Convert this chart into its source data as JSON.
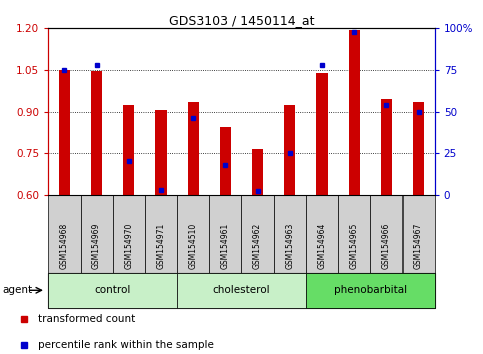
{
  "title": "GDS3103 / 1450114_at",
  "samples": [
    "GSM154968",
    "GSM154969",
    "GSM154970",
    "GSM154971",
    "GSM154510",
    "GSM154961",
    "GSM154962",
    "GSM154963",
    "GSM154964",
    "GSM154965",
    "GSM154966",
    "GSM154967"
  ],
  "transformed_count": [
    1.05,
    1.047,
    0.925,
    0.905,
    0.935,
    0.845,
    0.765,
    0.925,
    1.04,
    1.195,
    0.945,
    0.935
  ],
  "percentile_rank": [
    75,
    78,
    20,
    3,
    46,
    18,
    2,
    25,
    78,
    98,
    54,
    50
  ],
  "ylim_left": [
    0.6,
    1.2
  ],
  "ylim_right": [
    0,
    100
  ],
  "yticks_left": [
    0.6,
    0.75,
    0.9,
    1.05,
    1.2
  ],
  "yticks_right": [
    0,
    25,
    50,
    75,
    100
  ],
  "ytick_labels_right": [
    "0",
    "25",
    "50",
    "75",
    "100%"
  ],
  "groups": [
    {
      "label": "control",
      "indices": [
        0,
        1,
        2,
        3
      ],
      "color": "#c8f0c8"
    },
    {
      "label": "cholesterol",
      "indices": [
        4,
        5,
        6,
        7
      ],
      "color": "#c8f0c8"
    },
    {
      "label": "phenobarbital",
      "indices": [
        8,
        9,
        10,
        11
      ],
      "color": "#66dd66"
    }
  ],
  "bar_color": "#cc0000",
  "dot_color": "#0000cc",
  "baseline": 0.6,
  "bar_width": 0.35,
  "background_color": "#ffffff",
  "tick_color_left": "#cc0000",
  "tick_color_right": "#0000cc",
  "legend_bar_label": "transformed count",
  "legend_dot_label": "percentile rank within the sample",
  "sample_box_color": "#d0d0d0",
  "outer_box_color": "#b0b0b0"
}
